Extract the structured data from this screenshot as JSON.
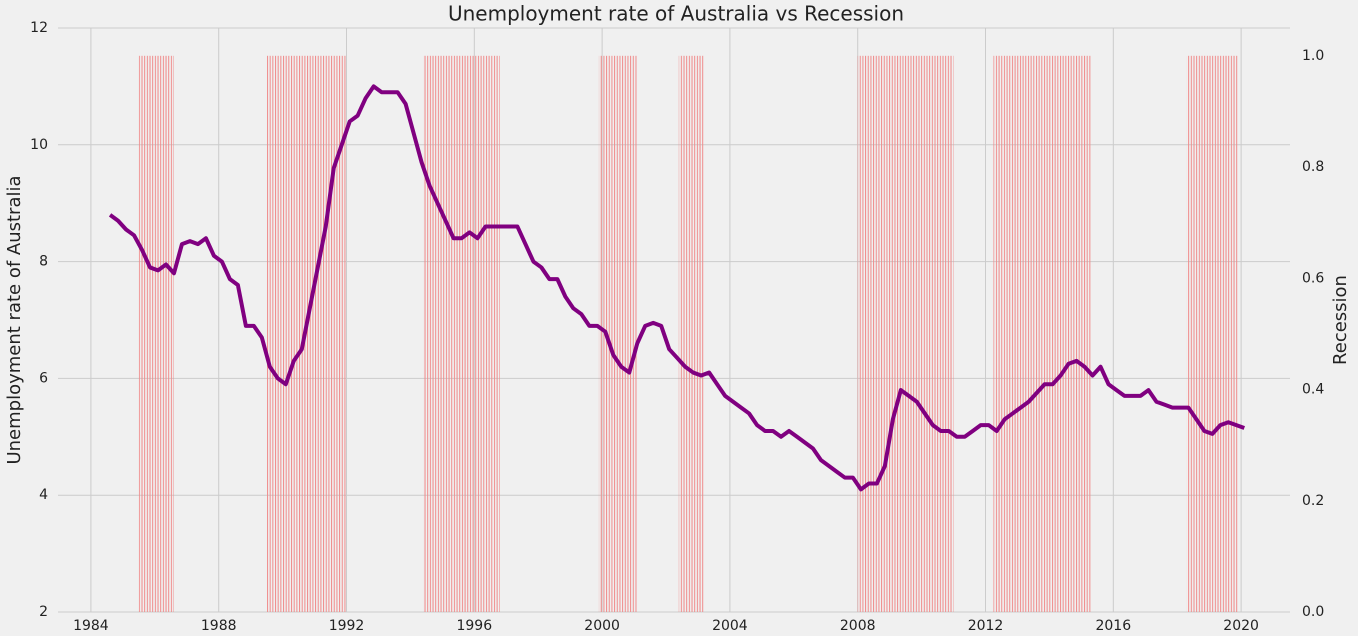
{
  "chart_data": {
    "type": "line",
    "title": "Unemployment rate of Australia vs Recession",
    "ylabel": "Unemployment rate of Australia",
    "y2label": "Recession",
    "xlim": [
      1982.97,
      2021.53
    ],
    "xticks": [
      1984,
      1988,
      1992,
      1996,
      2000,
      2004,
      2008,
      2012,
      2016,
      2020
    ],
    "ylim": [
      2,
      12
    ],
    "yticks": [
      2,
      4,
      6,
      8,
      10,
      12
    ],
    "y2lim": [
      0,
      1.05
    ],
    "y2ticks": [
      {
        "value": 0,
        "label": "0.0"
      },
      0.2,
      0.4,
      0.6,
      0.8,
      {
        "value": 1,
        "label": "1.0"
      }
    ],
    "grid": true,
    "series": [
      {
        "color": "#800080",
        "x": [
          1984.6,
          1984.85,
          1985.1,
          1985.35,
          1985.6,
          1985.85,
          1986.1,
          1986.35,
          1986.6,
          1986.85,
          1987.1,
          1987.35,
          1987.6,
          1987.85,
          1988.1,
          1988.35,
          1988.6,
          1988.85,
          1989.1,
          1989.35,
          1989.6,
          1989.85,
          1990.1,
          1990.35,
          1990.6,
          1990.85,
          1991.1,
          1991.35,
          1991.6,
          1991.85,
          1992.1,
          1992.35,
          1992.6,
          1992.85,
          1993.1,
          1993.35,
          1993.6,
          1993.85,
          1994.1,
          1994.35,
          1994.6,
          1994.85,
          1995.1,
          1995.35,
          1995.6,
          1995.85,
          1996.1,
          1996.35,
          1996.6,
          1996.85,
          1997.1,
          1997.35,
          1997.6,
          1997.85,
          1998.1,
          1998.35,
          1998.6,
          1998.85,
          1999.1,
          1999.35,
          1999.6,
          1999.85,
          2000.1,
          2000.35,
          2000.6,
          2000.85,
          2001.1,
          2001.35,
          2001.6,
          2001.85,
          2002.1,
          2002.35,
          2002.6,
          2002.85,
          2003.1,
          2003.35,
          2003.6,
          2003.85,
          2004.1,
          2004.35,
          2004.6,
          2004.85,
          2005.1,
          2005.35,
          2005.6,
          2005.85,
          2006.1,
          2006.35,
          2006.6,
          2006.85,
          2007.1,
          2007.35,
          2007.6,
          2007.85,
          2008.1,
          2008.35,
          2008.6,
          2008.85,
          2009.1,
          2009.35,
          2009.6,
          2009.85,
          2010.1,
          2010.35,
          2010.6,
          2010.85,
          2011.1,
          2011.35,
          2011.6,
          2011.85,
          2012.1,
          2012.35,
          2012.6,
          2012.85,
          2013.1,
          2013.35,
          2013.6,
          2013.85,
          2014.1,
          2014.35,
          2014.6,
          2014.85,
          2015.1,
          2015.35,
          2015.6,
          2015.85,
          2016.1,
          2016.35,
          2016.6,
          2016.85,
          2017.1,
          2017.35,
          2017.6,
          2017.85,
          2018.1,
          2018.35,
          2018.6,
          2018.85,
          2019.1,
          2019.35,
          2019.6,
          2019.85,
          2020.1
        ],
        "values": [
          8.8,
          8.7,
          8.55,
          8.45,
          8.2,
          7.9,
          7.85,
          7.95,
          7.8,
          8.3,
          8.35,
          8.3,
          8.4,
          8.1,
          8.0,
          7.7,
          7.6,
          6.9,
          6.9,
          6.7,
          6.2,
          6.0,
          5.9,
          6.3,
          6.5,
          7.2,
          7.9,
          8.6,
          9.6,
          10.0,
          10.4,
          10.5,
          10.8,
          11.0,
          10.9,
          10.9,
          10.9,
          10.7,
          10.2,
          9.7,
          9.3,
          9.0,
          8.7,
          8.4,
          8.4,
          8.5,
          8.4,
          8.6,
          8.6,
          8.6,
          8.6,
          8.6,
          8.3,
          8.0,
          7.9,
          7.7,
          7.7,
          7.4,
          7.2,
          7.1,
          6.9,
          6.9,
          6.8,
          6.4,
          6.2,
          6.1,
          6.6,
          6.9,
          6.95,
          6.9,
          6.5,
          6.35,
          6.2,
          6.1,
          6.05,
          6.1,
          5.9,
          5.7,
          5.6,
          5.5,
          5.4,
          5.2,
          5.1,
          5.1,
          5.0,
          5.1,
          5.0,
          4.9,
          4.8,
          4.6,
          4.5,
          4.4,
          4.3,
          4.3,
          4.1,
          4.2,
          4.2,
          4.5,
          5.3,
          5.8,
          5.7,
          5.6,
          5.4,
          5.2,
          5.1,
          5.1,
          5.0,
          5.0,
          5.1,
          5.2,
          5.2,
          5.1,
          5.3,
          5.4,
          5.5,
          5.6,
          5.75,
          5.9,
          5.9,
          6.05,
          6.25,
          6.3,
          6.2,
          6.05,
          6.2,
          5.9,
          5.8,
          5.7,
          5.7,
          5.7,
          5.8,
          5.6,
          5.55,
          5.5,
          5.5,
          5.5,
          5.3,
          5.1,
          5.05,
          5.2,
          5.25,
          5.2,
          5.15
        ]
      },
      {
        "axis": "y2",
        "color": "#f08a8a",
        "periods": [
          [
            1985.5,
            1986.6
          ],
          [
            1989.5,
            1992.0
          ],
          [
            1994.4,
            1996.8
          ],
          [
            1999.9,
            2001.1
          ],
          [
            2002.4,
            2003.2
          ],
          [
            2008.0,
            2011.0
          ],
          [
            2012.25,
            2015.3
          ],
          [
            2018.3,
            2019.9
          ]
        ],
        "values": [
          1,
          1,
          1,
          1,
          1,
          1,
          1,
          1
        ]
      }
    ]
  }
}
